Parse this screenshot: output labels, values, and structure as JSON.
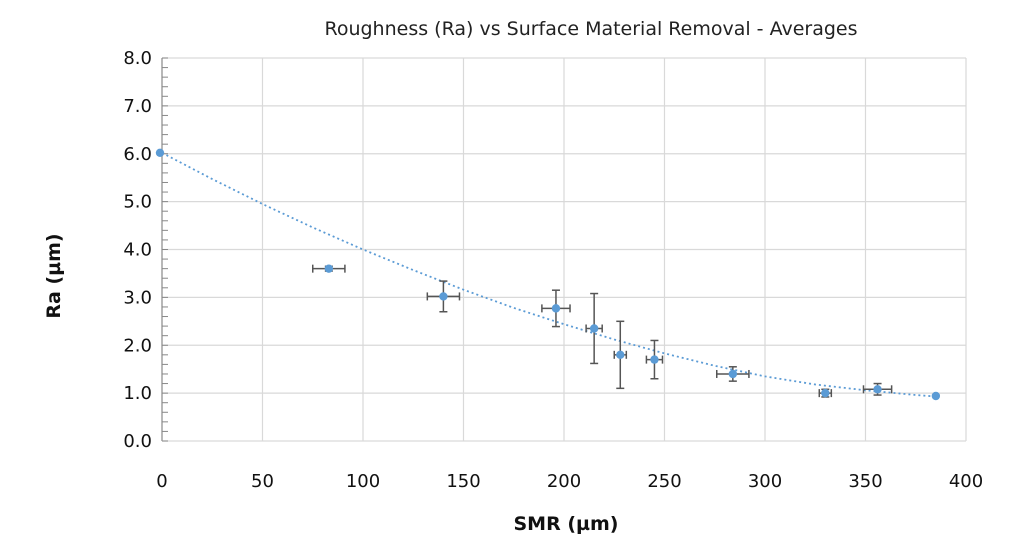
{
  "chart_data": {
    "type": "scatter",
    "title": "Roughness (Ra) vs Surface Material Removal - Averages",
    "xlabel": "SMR (µm)",
    "ylabel": "Ra (µm)",
    "xlim": [
      0,
      400
    ],
    "ylim": [
      0,
      8
    ],
    "x_ticks": [
      0,
      50,
      100,
      150,
      200,
      250,
      300,
      350,
      400
    ],
    "x_tick_labels": [
      "0",
      "50",
      "100",
      "150",
      "200",
      "250",
      "300",
      "350",
      "400"
    ],
    "y_ticks": [
      0,
      1,
      2,
      3,
      4,
      5,
      6,
      7,
      8
    ],
    "y_tick_labels": [
      "0.0",
      "1.0",
      "2.0",
      "3.0",
      "4.0",
      "5.0",
      "6.0",
      "7.0",
      "8.0"
    ],
    "y_minor_step": 0.2,
    "grid": true,
    "legend": "none",
    "colors": {
      "marker": "#5b9bd5",
      "error_bar": "#555555",
      "trendline": "#5b9bd5",
      "grid": "#d9d9d9",
      "axis": "#888888"
    },
    "points": [
      {
        "x": -1,
        "y": 6.02,
        "x_err": 0,
        "y_err": 0
      },
      {
        "x": 83,
        "y": 3.6,
        "x_err": 8,
        "y_err": 0.05
      },
      {
        "x": 140,
        "y": 3.02,
        "x_err": 8,
        "y_err": 0.32
      },
      {
        "x": 196,
        "y": 2.77,
        "x_err": 7,
        "y_err": 0.38
      },
      {
        "x": 215,
        "y": 2.35,
        "x_err": 4,
        "y_err": 0.73
      },
      {
        "x": 228,
        "y": 1.8,
        "x_err": 3,
        "y_err": 0.7
      },
      {
        "x": 245,
        "y": 1.7,
        "x_err": 4,
        "y_err": 0.4
      },
      {
        "x": 284,
        "y": 1.4,
        "x_err": 8,
        "y_err": 0.15
      },
      {
        "x": 330,
        "y": 1.0,
        "x_err": 3,
        "y_err": 0.08
      },
      {
        "x": 356,
        "y": 1.08,
        "x_err": 7,
        "y_err": 0.12
      },
      {
        "x": 385,
        "y": 0.94,
        "x_err": 0,
        "y_err": 0
      }
    ],
    "trendline": {
      "type": "polynomial",
      "x": [
        0,
        25,
        50,
        75,
        100,
        125,
        150,
        175,
        200,
        225,
        250,
        275,
        300,
        325,
        350,
        375,
        385
      ],
      "y": [
        6.02,
        5.47,
        4.95,
        4.46,
        4.0,
        3.57,
        3.16,
        2.78,
        2.44,
        2.12,
        1.83,
        1.57,
        1.35,
        1.18,
        1.06,
        0.96,
        0.93
      ]
    }
  }
}
